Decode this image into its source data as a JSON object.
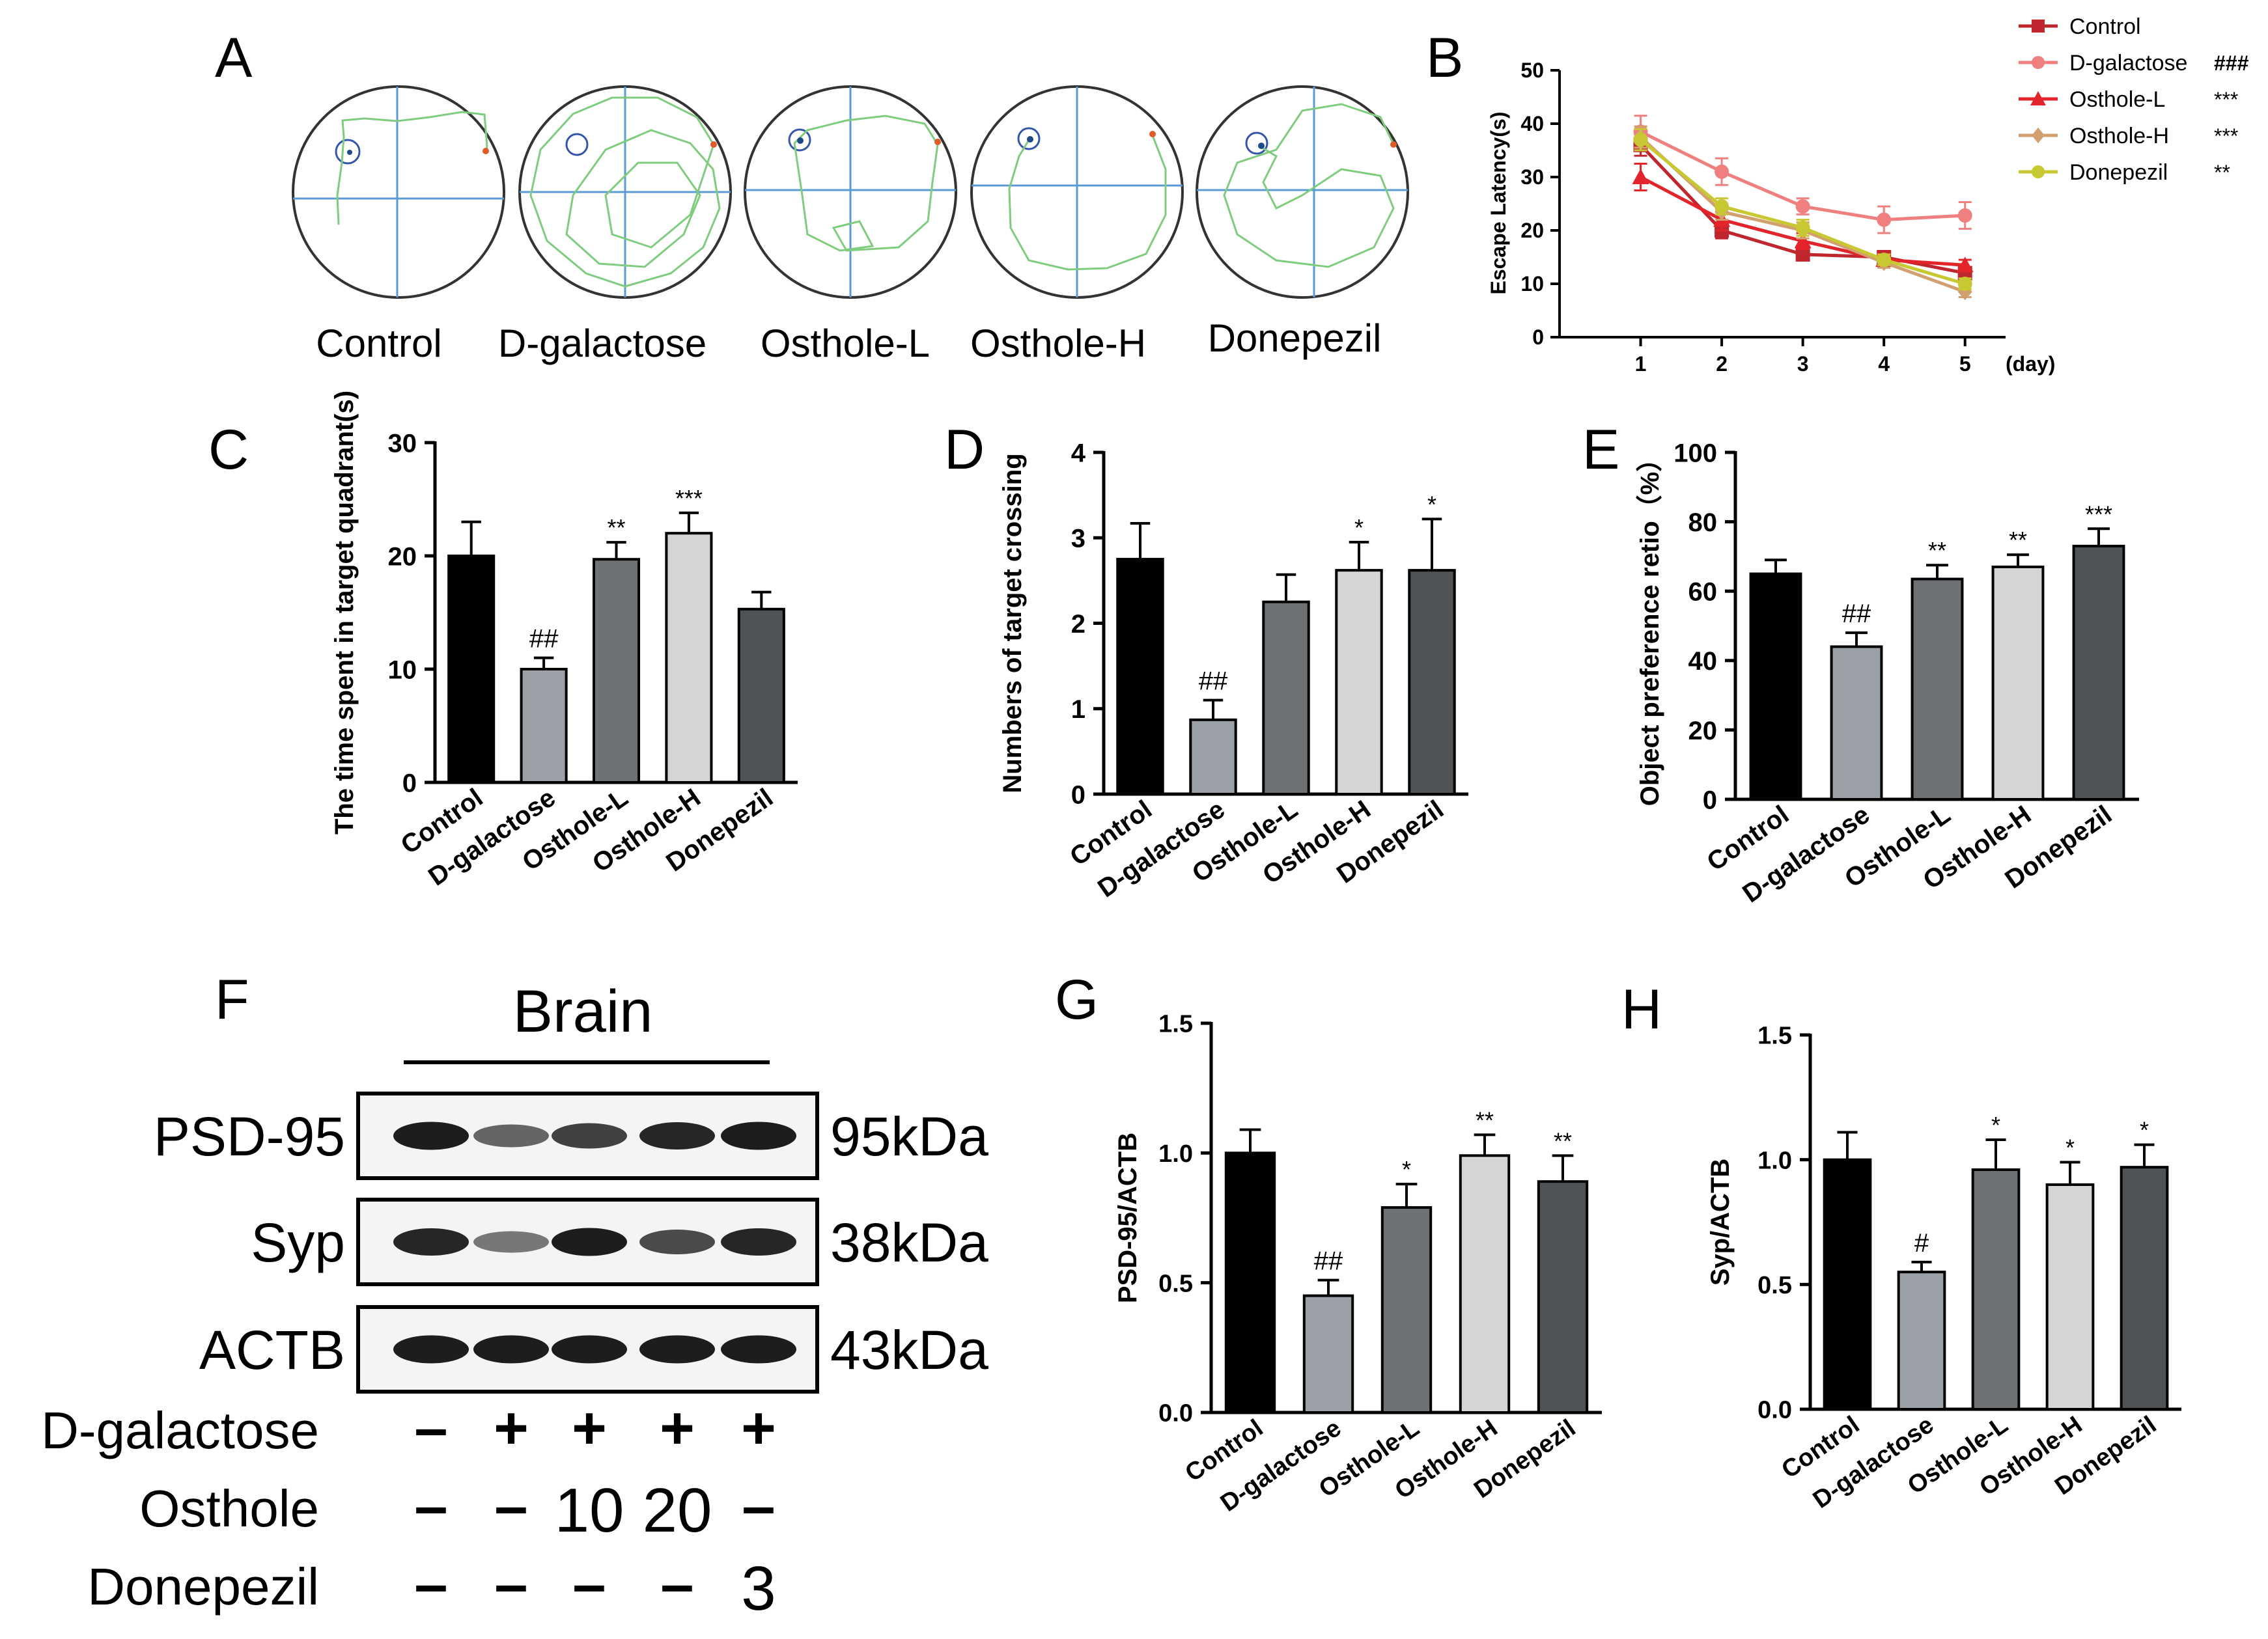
{
  "chart_data": [
    {
      "panel": "A",
      "type": "other",
      "description_labels": [
        "Control",
        "D-galactose",
        "Osthole-L",
        "Osthole-H",
        "Donepezil"
      ]
    },
    {
      "panel": "B",
      "type": "line",
      "xlabel": "(day)",
      "ylabel": "Escape Latency(s)",
      "x": [
        1,
        2,
        3,
        4,
        5
      ],
      "xlim": [
        0,
        5.5
      ],
      "ylim": [
        0,
        50
      ],
      "yticks": [
        0,
        10,
        20,
        30,
        40,
        50
      ],
      "series": [
        {
          "name": "Control",
          "sig": "",
          "color": "#c0262d",
          "marker": "square",
          "values": [
            36,
            20,
            15.5,
            15,
            12
          ],
          "errors": [
            2,
            1.5,
            1,
            1,
            1
          ]
        },
        {
          "name": "D-galactose",
          "sig": "###",
          "color": "#f08080",
          "marker": "circle",
          "values": [
            38.5,
            31,
            24.5,
            22,
            22.8
          ],
          "errors": [
            3,
            2.5,
            1.5,
            2.5,
            2.5
          ]
        },
        {
          "name": "Osthole-L",
          "sig": "***",
          "color": "#e3242b",
          "marker": "triangle",
          "values": [
            30,
            22,
            18,
            14.5,
            13.5
          ],
          "errors": [
            2.5,
            2,
            1.5,
            1,
            1
          ]
        },
        {
          "name": "Osthole-H",
          "sig": "***",
          "color": "#d2a06e",
          "marker": "diamond",
          "values": [
            37.5,
            23.5,
            20,
            14,
            8.5
          ],
          "errors": [
            2,
            1.5,
            1.5,
            1,
            1
          ]
        },
        {
          "name": "Donepezil",
          "sig": "**",
          "color": "#c8c832",
          "marker": "circle",
          "values": [
            37,
            24.5,
            20.5,
            14.5,
            10
          ],
          "errors": [
            2,
            1.5,
            1.5,
            1,
            1
          ]
        }
      ]
    },
    {
      "panel": "C",
      "type": "bar",
      "ylabel": "The time spent in target quadrant(s)",
      "categories": [
        "Control",
        "D-galactose",
        "Osthole-L",
        "Osthole-H",
        "Donepezil"
      ],
      "values": [
        20,
        10,
        19.7,
        22,
        15.3
      ],
      "errors": [
        3,
        1,
        1.5,
        1.8,
        1.5
      ],
      "annotations": [
        "",
        "##",
        "**",
        "***",
        ""
      ],
      "ylim": [
        0,
        30
      ],
      "yticks": [
        0,
        10,
        20,
        30
      ],
      "colors": [
        "#000000",
        "#9aa0a6",
        "#6e7275",
        "#d4d6d6",
        "#505355"
      ]
    },
    {
      "panel": "D",
      "type": "bar",
      "ylabel": "Numbers of target crossing",
      "categories": [
        "Control",
        "D-galactose",
        "Osthole-L",
        "Osthole-H",
        "Donepezil"
      ],
      "values": [
        2.75,
        0.87,
        2.25,
        2.62,
        2.62
      ],
      "errors": [
        0.42,
        0.23,
        0.32,
        0.33,
        0.6
      ],
      "annotations": [
        "",
        "##",
        "",
        "*",
        "*"
      ],
      "ylim": [
        0,
        4
      ],
      "yticks": [
        0,
        1,
        2,
        3,
        4
      ],
      "colors": [
        "#000000",
        "#9aa0a6",
        "#6e7275",
        "#d4d6d6",
        "#505355"
      ]
    },
    {
      "panel": "E",
      "type": "bar",
      "ylabel": "Object preference retio（%）",
      "categories": [
        "Control",
        "D-galactose",
        "Osthole-L",
        "Osthole-H",
        "Donepezil"
      ],
      "values": [
        65,
        44,
        63.5,
        67,
        73
      ],
      "errors": [
        4,
        4,
        4,
        3.5,
        5
      ],
      "annotations": [
        "",
        "##",
        "**",
        "**",
        "***"
      ],
      "ylim": [
        0,
        100
      ],
      "yticks": [
        0,
        20,
        40,
        60,
        80,
        100
      ],
      "colors": [
        "#000000",
        "#9aa0a6",
        "#6e7275",
        "#d4d6d6",
        "#505355"
      ]
    },
    {
      "panel": "G",
      "type": "bar",
      "ylabel": "PSD-95/ACTB",
      "categories": [
        "Control",
        "D-galactose",
        "Osthole-L",
        "Osthole-H",
        "Donepezil"
      ],
      "values": [
        1.0,
        0.45,
        0.79,
        0.99,
        0.89
      ],
      "errors": [
        0.09,
        0.06,
        0.09,
        0.08,
        0.1
      ],
      "annotations": [
        "",
        "##",
        "*",
        "**",
        "**"
      ],
      "ylim": [
        0,
        1.5
      ],
      "yticks": [
        "0.0",
        "0.5",
        "1.0",
        "1.5"
      ],
      "colors": [
        "#000000",
        "#9aa0a6",
        "#6e7275",
        "#d4d6d6",
        "#505355"
      ]
    },
    {
      "panel": "H",
      "type": "bar",
      "ylabel": "Syp/ACTB",
      "categories": [
        "Control",
        "D-galactose",
        "Osthole-L",
        "Osthole-H",
        "Donepezil"
      ],
      "values": [
        1.0,
        0.55,
        0.96,
        0.9,
        0.97
      ],
      "errors": [
        0.11,
        0.04,
        0.12,
        0.09,
        0.09
      ],
      "annotations": [
        "",
        "#",
        "*",
        "*",
        "*"
      ],
      "ylim": [
        0,
        1.5
      ],
      "yticks": [
        "0.0",
        "0.5",
        "1.0",
        "1.5"
      ],
      "colors": [
        "#000000",
        "#9aa0a6",
        "#6e7275",
        "#d4d6d6",
        "#505355"
      ]
    }
  ],
  "panelA": {
    "letter": "A",
    "labels": [
      "Control",
      "D-galactose",
      "Osthole-L",
      "Osthole-H",
      "Donepezil"
    ]
  },
  "panelB": {
    "letter": "B"
  },
  "panelC": {
    "letter": "C"
  },
  "panelD": {
    "letter": "D"
  },
  "panelE": {
    "letter": "E"
  },
  "panelF": {
    "letter": "F",
    "tissue": "Brain",
    "blots": [
      {
        "name": "PSD-95",
        "kda": "95kDa",
        "intensities": [
          0.95,
          0.55,
          0.75,
          0.9,
          0.95
        ]
      },
      {
        "name": "Syp",
        "kda": "38kDa",
        "intensities": [
          0.9,
          0.45,
          0.95,
          0.7,
          0.9
        ]
      },
      {
        "name": "ACTB",
        "kda": "43kDa",
        "intensities": [
          0.95,
          0.95,
          0.95,
          0.95,
          0.95
        ]
      }
    ],
    "treatments": [
      {
        "name": "D-galactose",
        "values": [
          "–",
          "+",
          "+",
          "+",
          "+"
        ]
      },
      {
        "name": "Osthole",
        "values": [
          "–",
          "–",
          "10",
          "20",
          "–"
        ]
      },
      {
        "name": "Donepezil",
        "values": [
          "–",
          "–",
          "–",
          "–",
          "3"
        ]
      }
    ]
  },
  "panelG": {
    "letter": "G"
  },
  "panelH": {
    "letter": "H"
  }
}
